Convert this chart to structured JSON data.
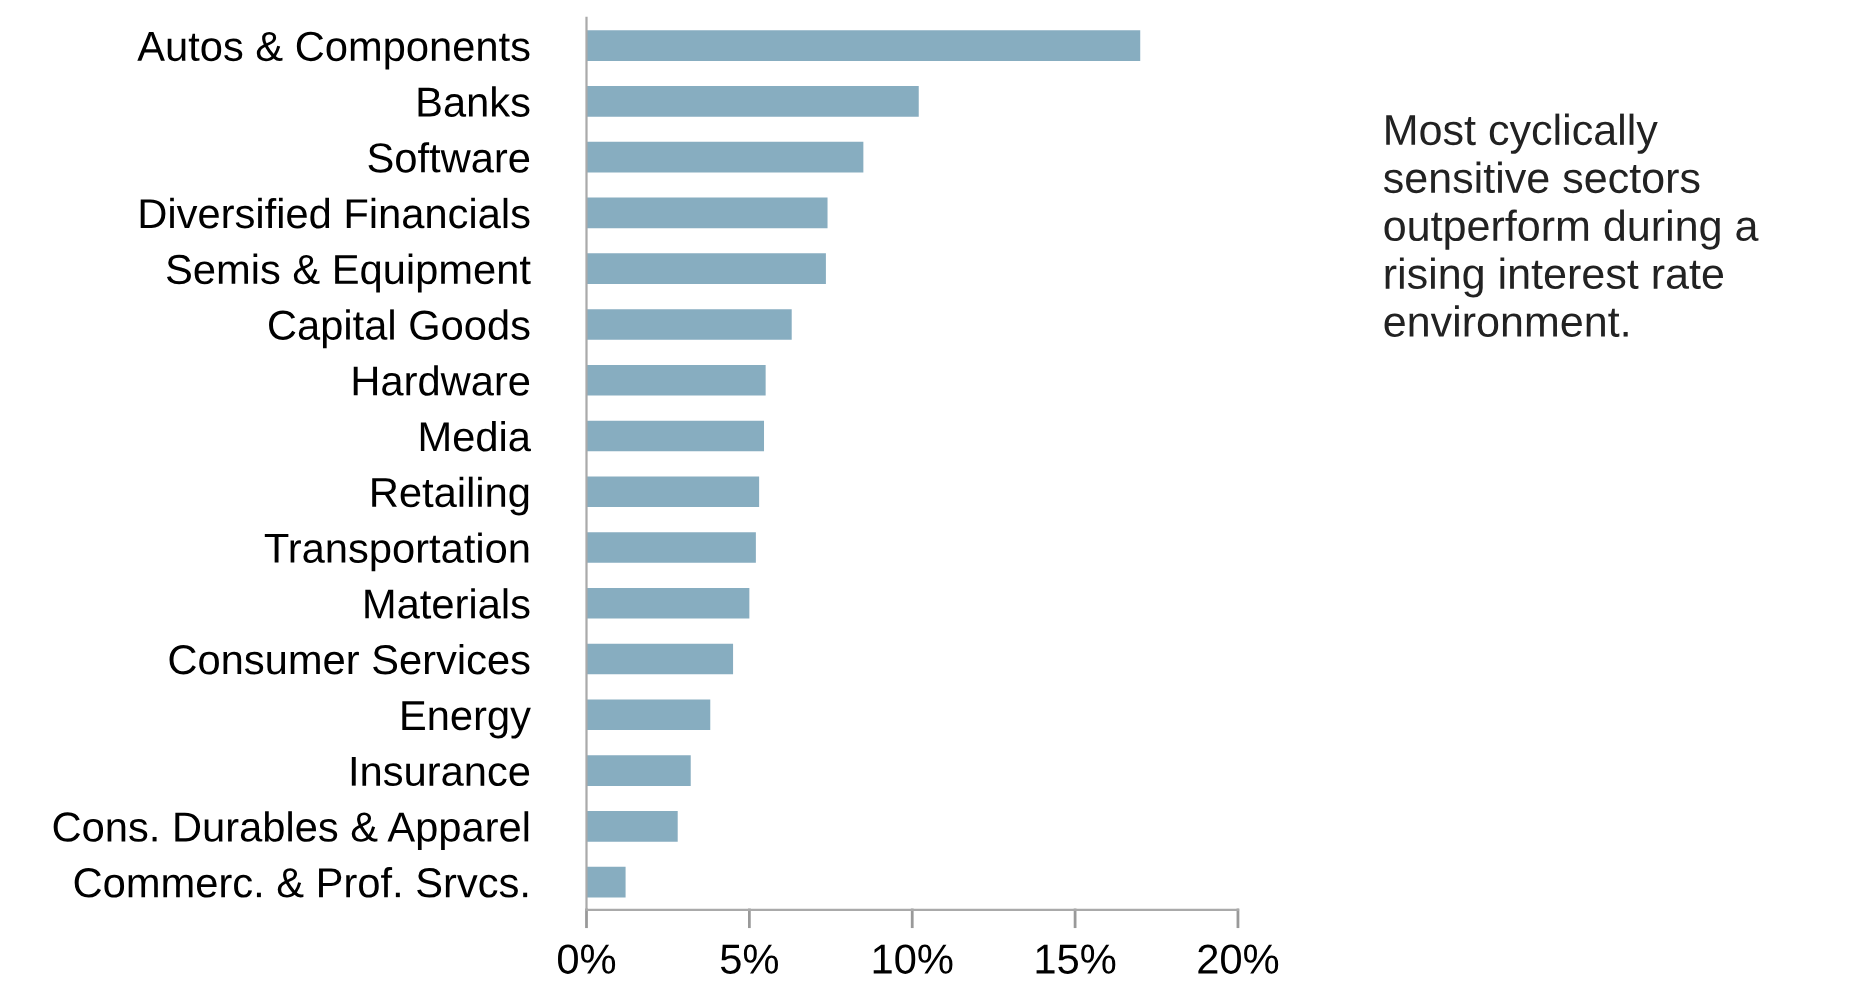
{
  "chart_data": {
    "type": "bar",
    "orientation": "horizontal",
    "categories": [
      "Autos & Components",
      "Banks",
      "Software",
      "Diversified Financials",
      "Semis & Equipment",
      "Capital Goods",
      "Hardware",
      "Media",
      "Retailing",
      "Transportation",
      "Materials",
      "Consumer Services",
      "Energy",
      "Insurance",
      "Cons. Durables & Apparel",
      "Commerc. & Prof. Srvcs."
    ],
    "values": [
      17.0,
      10.2,
      8.5,
      7.4,
      7.35,
      6.3,
      5.5,
      5.45,
      5.3,
      5.2,
      5.0,
      4.5,
      3.8,
      3.2,
      2.8,
      1.2
    ],
    "color": "#87adc0",
    "xlim": [
      0,
      20
    ],
    "xticks": [
      {
        "value": 0,
        "label": "0%"
      },
      {
        "value": 5,
        "label": "5%"
      },
      {
        "value": 10,
        "label": "10%"
      },
      {
        "value": 15,
        "label": "15%"
      },
      {
        "value": 20,
        "label": "20%"
      }
    ],
    "grid": false,
    "legend": false,
    "annotations": [
      "Most cyclically sensitive sectors outperform during a rising interest rate environment."
    ]
  }
}
